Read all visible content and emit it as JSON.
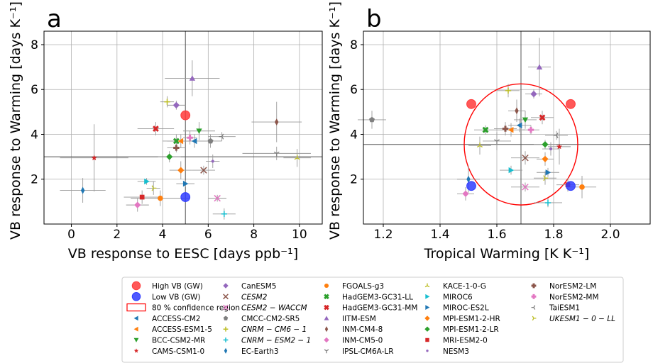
{
  "chart_data": [
    {
      "type": "scatter",
      "panel_label": "a",
      "xlabel": "VB response to EESC [days ppb⁻¹]",
      "ylabel": "VB response to Warming [days K⁻¹]",
      "xlim": [
        -1.2,
        11
      ],
      "ylim": [
        0,
        8.6
      ],
      "xticks": [
        0,
        2,
        4,
        6,
        8,
        10
      ],
      "yticks": [
        2,
        4,
        6,
        8
      ],
      "xtick_labels": [
        "0",
        "2",
        "4",
        "6",
        "8",
        "10"
      ],
      "ytick_labels": [
        "2",
        "4",
        "6",
        "8"
      ],
      "grid": true,
      "ref_lines": {
        "x": 5.0,
        "y": 3.0
      },
      "highlight": [
        {
          "name": "High VB (GW)",
          "x": 5.0,
          "y": 4.85,
          "color": "#ff3b3b"
        },
        {
          "name": "Low VB (GW)",
          "x": 5.0,
          "y": 1.2,
          "color": "#2f3cff"
        }
      ],
      "points": [
        {
          "model": "ACCESS-CM2",
          "x": 5.4,
          "y": 3.7,
          "xerr": 0.8,
          "yerr": 0.3
        },
        {
          "model": "ACCESS-ESM1-5",
          "x": 4.8,
          "y": 3.7,
          "xerr": 0.6,
          "yerr": 0.3
        },
        {
          "model": "BCC-CSM2-MR",
          "x": 5.6,
          "y": 4.15,
          "xerr": 0.7,
          "yerr": 0.4
        },
        {
          "model": "CAMS-CSM1-0",
          "x": 1.0,
          "y": 2.95,
          "xerr": 1.5,
          "yerr": 1.5
        },
        {
          "model": "CanESM5",
          "x": 4.6,
          "y": 5.3,
          "xerr": 0.4,
          "yerr": 0.2
        },
        {
          "model": "CESM2",
          "x": 5.8,
          "y": 2.4,
          "xerr": 0.5,
          "yerr": 0.2
        },
        {
          "model": "CESM2-WACCM",
          "x": 6.4,
          "y": 1.15,
          "xerr": 0.4,
          "yerr": 0.15
        },
        {
          "model": "CMCC-CM2-SR5",
          "x": 6.1,
          "y": 3.7,
          "xerr": 0.5,
          "yerr": 0.3
        },
        {
          "model": "CNRM-CM6-1",
          "x": 4.2,
          "y": 5.45,
          "xerr": 0.3,
          "yerr": 0.25
        },
        {
          "model": "CNRM-ESM2-1",
          "x": 6.7,
          "y": 0.45,
          "xerr": 0.5,
          "yerr": 0.25
        },
        {
          "model": "EC-Earth3",
          "x": 0.5,
          "y": 1.5,
          "xerr": 1.0,
          "yerr": 0.55
        },
        {
          "model": "FGOALS-g3",
          "x": 3.9,
          "y": 1.15,
          "xerr": 1.3,
          "yerr": 0.35
        },
        {
          "model": "HadGEM3-GC31-LL",
          "x": 4.6,
          "y": 3.7,
          "xerr": 0.6,
          "yerr": 0.3
        },
        {
          "model": "HadGEM3-GC31-MM",
          "x": 3.7,
          "y": 4.25,
          "xerr": 0.8,
          "yerr": 0.3
        },
        {
          "model": "IITM-ESM",
          "x": 5.3,
          "y": 6.5,
          "xerr": 1.2,
          "yerr": 0.8
        },
        {
          "model": "INM-CM4-8",
          "x": 9.0,
          "y": 4.55,
          "xerr": 1.1,
          "yerr": 0.9
        },
        {
          "model": "INM-CM5-0",
          "x": 2.9,
          "y": 0.85,
          "xerr": 0.5,
          "yerr": 0.3
        },
        {
          "model": "IPSL-CM6A-LR",
          "x": 9.0,
          "y": 3.15,
          "xerr": 1.5,
          "yerr": 0.3
        },
        {
          "model": "KACE-1-0-G",
          "x": 9.9,
          "y": 2.95,
          "xerr": 0.6,
          "yerr": 0.4
        },
        {
          "model": "MIROC6",
          "x": 3.3,
          "y": 1.9,
          "xerr": 0.4,
          "yerr": 0.15
        },
        {
          "model": "MIROC-ES2L",
          "x": 5.0,
          "y": 1.8,
          "xerr": 0.4,
          "yerr": 0.15
        },
        {
          "model": "MPI-ESM1-2-HR",
          "x": 4.8,
          "y": 2.4,
          "xerr": 0.5,
          "yerr": 0.4
        },
        {
          "model": "MPI-ESM1-2-LR",
          "x": 4.3,
          "y": 3.0,
          "xerr": 0.5,
          "yerr": 0.25
        },
        {
          "model": "MRI-ESM2-0",
          "x": 3.1,
          "y": 1.2,
          "xerr": 0.8,
          "yerr": 0.3
        },
        {
          "model": "NESM3",
          "x": 6.2,
          "y": 2.8,
          "xerr": 0.3,
          "yerr": 0.3
        },
        {
          "model": "NorESM2-LM",
          "x": 4.6,
          "y": 3.4,
          "xerr": 0.4,
          "yerr": 0.2
        },
        {
          "model": "NorESM2-MM",
          "x": 5.2,
          "y": 3.85,
          "xerr": 0.3,
          "yerr": 0.3
        },
        {
          "model": "TaiESM1",
          "x": 6.6,
          "y": 3.9,
          "xerr": 0.6,
          "yerr": 0.2
        },
        {
          "model": "UKESM1-0-LL",
          "x": 3.6,
          "y": 1.6,
          "xerr": 0.3,
          "yerr": 0.3
        }
      ]
    },
    {
      "type": "scatter",
      "panel_label": "b",
      "xlabel": "Tropical Warming [K K⁻¹]",
      "ylabel": "VB response to Warming [days K⁻¹]",
      "xlim": [
        1.13,
        2.14
      ],
      "ylim": [
        0,
        8.6
      ],
      "xticks": [
        1.2,
        1.4,
        1.6,
        1.8,
        2.0
      ],
      "yticks": [
        2,
        4,
        6,
        8
      ],
      "xtick_labels": [
        "1.2",
        "1.4",
        "1.6",
        "1.8",
        "2.0"
      ],
      "ytick_labels": [
        "2",
        "4",
        "6",
        "8"
      ],
      "grid": true,
      "ref_lines": {
        "x": 1.685,
        "y": 3.55
      },
      "confidence_ellipse": {
        "label": "80 % confidence region",
        "cx": 1.685,
        "cy": 3.55,
        "rx": 0.2,
        "ry": 2.7,
        "color": "#ff0000"
      },
      "highlight": [
        {
          "name": "High VB (GW)",
          "x": 1.51,
          "y": 5.35,
          "color": "#ff3b3b"
        },
        {
          "name": "High VB (GW)",
          "x": 1.86,
          "y": 5.35,
          "color": "#ff3b3b"
        },
        {
          "name": "Low VB (GW)",
          "x": 1.51,
          "y": 1.7,
          "color": "#2f3cff"
        },
        {
          "name": "Low VB (GW)",
          "x": 1.86,
          "y": 1.7,
          "color": "#2f3cff"
        }
      ],
      "points": [
        {
          "model": "ACCESS-CM2",
          "x": 1.68,
          "y": 4.4,
          "xerr": 0.04,
          "yerr": 0.3
        },
        {
          "model": "ACCESS-ESM1-5",
          "x": 1.65,
          "y": 4.2,
          "xerr": 0.05,
          "yerr": 0.3
        },
        {
          "model": "BCC-CSM2-MR",
          "x": 1.7,
          "y": 4.65,
          "xerr": 0.04,
          "yerr": 0.4
        },
        {
          "model": "CAMS-CSM1-0",
          "x": 1.82,
          "y": 3.45,
          "xerr": 0.04,
          "yerr": 0.8
        },
        {
          "model": "CanESM5",
          "x": 1.73,
          "y": 5.8,
          "xerr": 0.03,
          "yerr": 0.2
        },
        {
          "model": "CESM2",
          "x": 1.7,
          "y": 2.95,
          "xerr": 0.05,
          "yerr": 0.3
        },
        {
          "model": "CESM2-WACCM",
          "x": 1.7,
          "y": 1.65,
          "xerr": 0.05,
          "yerr": 0.2
        },
        {
          "model": "CMCC-CM2-SR5",
          "x": 1.16,
          "y": 4.65,
          "xerr": 0.05,
          "yerr": 0.4
        },
        {
          "model": "CNRM-CM6-1",
          "x": 1.64,
          "y": 5.95,
          "xerr": 0.04,
          "yerr": 0.3
        },
        {
          "model": "CNRM-ESM2-1",
          "x": 1.78,
          "y": 0.95,
          "xerr": 0.05,
          "yerr": 0.2
        },
        {
          "model": "EC-Earth3",
          "x": 1.5,
          "y": 2.0,
          "xerr": 0.04,
          "yerr": 0.6
        },
        {
          "model": "FGOALS-g3",
          "x": 1.9,
          "y": 1.65,
          "xerr": 0.05,
          "yerr": 0.5
        },
        {
          "model": "HadGEM3-GC31-LL",
          "x": 1.56,
          "y": 4.2,
          "xerr": 0.04,
          "yerr": 0.2
        },
        {
          "model": "HadGEM3-GC31-MM",
          "x": 1.76,
          "y": 4.75,
          "xerr": 0.04,
          "yerr": 0.3
        },
        {
          "model": "IITM-ESM",
          "x": 1.75,
          "y": 7.0,
          "xerr": 0.04,
          "yerr": 1.3
        },
        {
          "model": "INM-CM4-8",
          "x": 1.67,
          "y": 5.05,
          "xerr": 0.03,
          "yerr": 0.5
        },
        {
          "model": "INM-CM5-0",
          "x": 1.49,
          "y": 1.35,
          "xerr": 0.03,
          "yerr": 0.3
        },
        {
          "model": "IPSL-CM6A-LR",
          "x": 1.6,
          "y": 3.7,
          "xerr": 0.05,
          "yerr": 0.4
        },
        {
          "model": "KACE-1-0-G",
          "x": 1.54,
          "y": 3.5,
          "xerr": 0.04,
          "yerr": 0.4
        },
        {
          "model": "MIROC6",
          "x": 1.65,
          "y": 2.4,
          "xerr": 0.04,
          "yerr": 0.2
        },
        {
          "model": "MIROC-ES2L",
          "x": 1.78,
          "y": 2.3,
          "xerr": 0.04,
          "yerr": 0.2
        },
        {
          "model": "MPI-ESM1-2-HR",
          "x": 1.77,
          "y": 2.9,
          "xerr": 0.03,
          "yerr": 0.3
        },
        {
          "model": "MPI-ESM1-2-LR",
          "x": 1.77,
          "y": 3.55,
          "xerr": 0.04,
          "yerr": 0.2
        },
        {
          "model": "MRI-ESM2-0",
          "x": 1.85,
          "y": 1.75,
          "xerr": 0.04,
          "yerr": 0.3
        },
        {
          "model": "NESM3",
          "x": 1.79,
          "y": 3.35,
          "xerr": 0.03,
          "yerr": 0.3
        },
        {
          "model": "NorESM2-LM",
          "x": 1.63,
          "y": 4.25,
          "xerr": 0.04,
          "yerr": 0.3
        },
        {
          "model": "NorESM2-MM",
          "x": 1.72,
          "y": 4.2,
          "xerr": 0.03,
          "yerr": 0.2
        },
        {
          "model": "TaiESM1",
          "x": 1.81,
          "y": 3.95,
          "xerr": 0.04,
          "yerr": 0.2
        },
        {
          "model": "UKESM1-0-LL",
          "x": 1.77,
          "y": 2.05,
          "xerr": 0.04,
          "yerr": 0.3
        }
      ]
    }
  ],
  "legend": {
    "special": [
      {
        "label": "High VB (GW)",
        "marker": "bigcircle",
        "color": "#ff3b3b"
      },
      {
        "label": "Low VB (GW)",
        "marker": "bigcircle",
        "color": "#2f3cff"
      },
      {
        "label": "80 % confidence region",
        "marker": "rect",
        "color": "#ff0000"
      }
    ],
    "models": [
      {
        "label": "ACCESS-CM2",
        "marker": "triangle-left",
        "color": "#1f77b4"
      },
      {
        "label": "ACCESS-ESM1-5",
        "marker": "triangle-left",
        "color": "#ff7f0e"
      },
      {
        "label": "BCC-CSM2-MR",
        "marker": "triangle-down",
        "color": "#2ca02c"
      },
      {
        "label": "CAMS-CSM1-0",
        "marker": "star",
        "color": "#d62728"
      },
      {
        "label": "CanESM5",
        "marker": "diamond",
        "color": "#9467bd"
      },
      {
        "label": "CESM2",
        "marker": "x",
        "color": "#8c564b",
        "italic": true
      },
      {
        "label": "CESM2 − WACCM",
        "marker": "x",
        "color": "#e377c2",
        "italic": true
      },
      {
        "label": "CMCC-CM2-SR5",
        "marker": "pentagon",
        "color": "#7f7f7f"
      },
      {
        "label": "CNRM − CM6 − 1",
        "marker": "plus",
        "color": "#bcbd22",
        "italic": true
      },
      {
        "label": "CNRM − ESM2 − 1",
        "marker": "plus",
        "color": "#17becf",
        "italic": true
      },
      {
        "label": "EC-Earth3",
        "marker": "thin-diamond",
        "color": "#1f77b4"
      },
      {
        "label": "FGOALS-g3",
        "marker": "circle",
        "color": "#ff7f0e"
      },
      {
        "label": "HadGEM3-GC31-LL",
        "marker": "x-filled",
        "color": "#2ca02c"
      },
      {
        "label": "HadGEM3-GC31-MM",
        "marker": "x-filled",
        "color": "#d62728"
      },
      {
        "label": "IITM-ESM",
        "marker": "triangle-up",
        "color": "#9467bd"
      },
      {
        "label": "INM-CM4-8",
        "marker": "thin-diamond",
        "color": "#8c564b"
      },
      {
        "label": "INM-CM5-0",
        "marker": "diamond",
        "color": "#e377c2"
      },
      {
        "label": "IPSL-CM6A-LR",
        "marker": "tri-down",
        "color": "#7f7f7f"
      },
      {
        "label": "KACE-1-0-G",
        "marker": "tri-up",
        "color": "#bcbd22"
      },
      {
        "label": "MIROC6",
        "marker": "triangle-right",
        "color": "#17becf"
      },
      {
        "label": "MIROC-ES2L",
        "marker": "triangle-right",
        "color": "#1f77b4"
      },
      {
        "label": "MPI-ESM1-2-HR",
        "marker": "diamond",
        "color": "#ff7f0e"
      },
      {
        "label": "MPI-ESM1-2-LR",
        "marker": "diamond",
        "color": "#2ca02c"
      },
      {
        "label": "MRI-ESM2-0",
        "marker": "square",
        "color": "#d62728"
      },
      {
        "label": "NESM3",
        "marker": "point",
        "color": "#9467bd"
      },
      {
        "label": "NorESM2-LM",
        "marker": "plus-filled",
        "color": "#8c564b"
      },
      {
        "label": "NorESM2-MM",
        "marker": "plus-filled",
        "color": "#e377c2"
      },
      {
        "label": "TaiESM1",
        "marker": "tri-left",
        "color": "#7f7f7f"
      },
      {
        "label": "UKESM1 − 0 − LL",
        "marker": "tri-right",
        "color": "#bcbd22",
        "italic": true
      }
    ]
  }
}
